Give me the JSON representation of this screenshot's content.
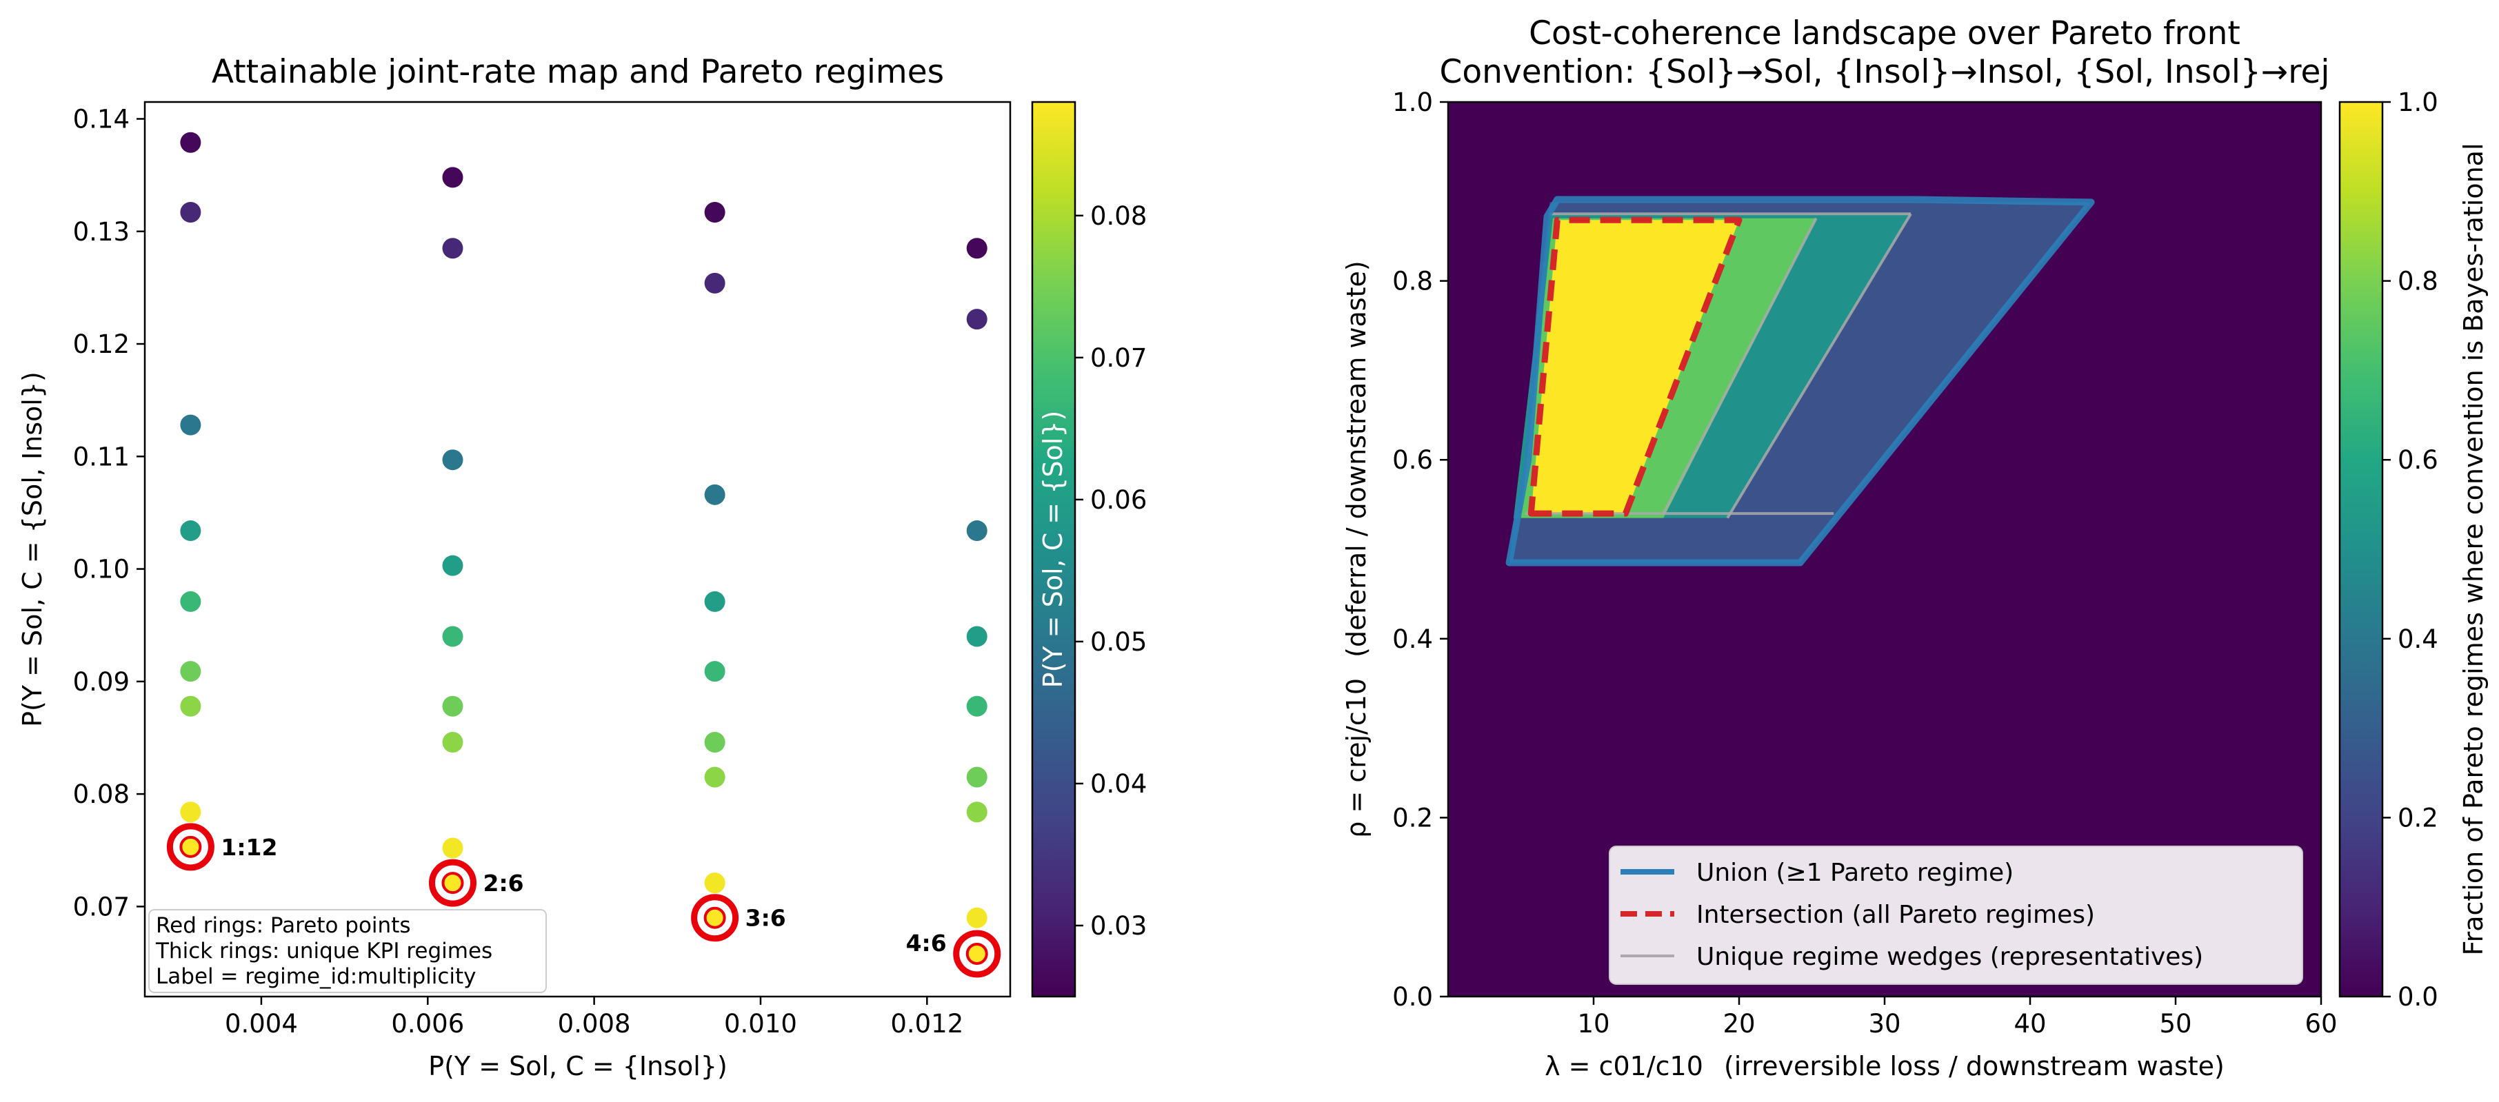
{
  "chart_data": [
    {
      "type": "scatter",
      "title": "Attainable joint-rate map and Pareto regimes",
      "xlabel": "P(Y = Sol, C = {Insol})",
      "ylabel": "P(Y = Sol, C = {Sol, Insol})",
      "xlim": [
        0.0026,
        0.013
      ],
      "ylim": [
        0.062,
        0.1415
      ],
      "xticks": [
        "0.004",
        "0.006",
        "0.008",
        "0.010",
        "0.012"
      ],
      "xtick_values": [
        0.004,
        0.006,
        0.008,
        0.01,
        0.012
      ],
      "yticks": [
        "0.07",
        "0.08",
        "0.09",
        "0.10",
        "0.11",
        "0.12",
        "0.13",
        "0.14"
      ],
      "ytick_values": [
        0.07,
        0.08,
        0.09,
        0.1,
        0.11,
        0.12,
        0.13,
        0.14
      ],
      "colorbar_label": "P(Y = Sol, C = {Sol})",
      "colorbar_range": [
        0.025,
        0.088
      ],
      "colorbar_ticks": [
        "0.03",
        "0.04",
        "0.05",
        "0.06",
        "0.07",
        "0.08"
      ],
      "colorbar_tick_values": [
        0.03,
        0.04,
        0.05,
        0.06,
        0.07,
        0.08
      ],
      "points": [
        {
          "x": 0.00315,
          "y": 0.1379,
          "c": 0.026
        },
        {
          "x": 0.00315,
          "y": 0.1317,
          "c": 0.032
        },
        {
          "x": 0.00315,
          "y": 0.1128,
          "c": 0.05
        },
        {
          "x": 0.00315,
          "y": 0.1034,
          "c": 0.06
        },
        {
          "x": 0.00315,
          "y": 0.0971,
          "c": 0.067
        },
        {
          "x": 0.00315,
          "y": 0.0909,
          "c": 0.074
        },
        {
          "x": 0.00315,
          "y": 0.0878,
          "c": 0.077
        },
        {
          "x": 0.00315,
          "y": 0.0784,
          "c": 0.087
        },
        {
          "x": 0.00315,
          "y": 0.0753,
          "c": 0.088
        },
        {
          "x": 0.0063,
          "y": 0.1348,
          "c": 0.026
        },
        {
          "x": 0.0063,
          "y": 0.1285,
          "c": 0.032
        },
        {
          "x": 0.0063,
          "y": 0.1097,
          "c": 0.05
        },
        {
          "x": 0.0063,
          "y": 0.1003,
          "c": 0.06
        },
        {
          "x": 0.0063,
          "y": 0.094,
          "c": 0.067
        },
        {
          "x": 0.0063,
          "y": 0.0878,
          "c": 0.074
        },
        {
          "x": 0.0063,
          "y": 0.0846,
          "c": 0.077
        },
        {
          "x": 0.0063,
          "y": 0.0752,
          "c": 0.087
        },
        {
          "x": 0.0063,
          "y": 0.0721,
          "c": 0.088
        },
        {
          "x": 0.00945,
          "y": 0.1317,
          "c": 0.026
        },
        {
          "x": 0.00945,
          "y": 0.1254,
          "c": 0.032
        },
        {
          "x": 0.00945,
          "y": 0.1066,
          "c": 0.05
        },
        {
          "x": 0.00945,
          "y": 0.0971,
          "c": 0.06
        },
        {
          "x": 0.00945,
          "y": 0.0909,
          "c": 0.067
        },
        {
          "x": 0.00945,
          "y": 0.0846,
          "c": 0.074
        },
        {
          "x": 0.00945,
          "y": 0.0815,
          "c": 0.077
        },
        {
          "x": 0.00945,
          "y": 0.0721,
          "c": 0.087
        },
        {
          "x": 0.00945,
          "y": 0.069,
          "c": 0.088
        },
        {
          "x": 0.0126,
          "y": 0.1285,
          "c": 0.026
        },
        {
          "x": 0.0126,
          "y": 0.1222,
          "c": 0.032
        },
        {
          "x": 0.0126,
          "y": 0.1034,
          "c": 0.05
        },
        {
          "x": 0.0126,
          "y": 0.094,
          "c": 0.06
        },
        {
          "x": 0.0126,
          "y": 0.0878,
          "c": 0.067
        },
        {
          "x": 0.0126,
          "y": 0.0815,
          "c": 0.074
        },
        {
          "x": 0.0126,
          "y": 0.0784,
          "c": 0.077
        },
        {
          "x": 0.0126,
          "y": 0.069,
          "c": 0.087
        },
        {
          "x": 0.0126,
          "y": 0.0658,
          "c": 0.088
        }
      ],
      "pareto_points": [
        {
          "x": 0.00315,
          "y": 0.0753,
          "label": "1:12",
          "label_side": "right"
        },
        {
          "x": 0.0063,
          "y": 0.0721,
          "label": "2:6",
          "label_side": "right"
        },
        {
          "x": 0.00945,
          "y": 0.069,
          "label": "3:6",
          "label_side": "right"
        },
        {
          "x": 0.0126,
          "y": 0.0658,
          "label": "4:6",
          "label_side": "left"
        }
      ],
      "notes": [
        "Red rings: Pareto points",
        "Thick rings: unique KPI regimes",
        "Label = regime_id:multiplicity"
      ]
    },
    {
      "type": "heatmap",
      "title_line1": "Cost-coherence landscape over Pareto front",
      "title_line2": "Convention: {Sol}→Sol,  {Insol}→Insol,  {Sol, Insol}→rej",
      "xlabel_main": "λ = c01/c10",
      "xlabel_desc": "(irreversible loss / downstream waste)",
      "ylabel_main": "ρ = crej/c10",
      "ylabel_desc": "(deferral / downstream waste)",
      "xlim": [
        0,
        60
      ],
      "ylim": [
        0,
        1
      ],
      "xticks": [
        "10",
        "20",
        "30",
        "40",
        "50",
        "60"
      ],
      "xtick_values": [
        10,
        20,
        30,
        40,
        50,
        60
      ],
      "yticks": [
        "0.0",
        "0.2",
        "0.4",
        "0.6",
        "0.8",
        "1.0"
      ],
      "ytick_values": [
        0,
        0.2,
        0.4,
        0.6,
        0.8,
        1.0
      ],
      "colorbar_label": "Fraction of Pareto regimes where convention is Bayes-rational",
      "colorbar_range": [
        0,
        1
      ],
      "colorbar_ticks": [
        "0.0",
        "0.2",
        "0.4",
        "0.6",
        "0.8",
        "1.0"
      ],
      "colorbar_tick_values": [
        0,
        0.2,
        0.4,
        0.6,
        0.8,
        1.0
      ],
      "background_value": 0.0,
      "regions": [
        {
          "value": 0.25,
          "polygon": [
            [
              4.2,
              0.485
            ],
            [
              24.2,
              0.485
            ],
            [
              44.2,
              0.888
            ],
            [
              7.0,
              0.888
            ]
          ]
        },
        {
          "value": 0.5,
          "polygon": [
            [
              4.5,
              0.535
            ],
            [
              19.2,
              0.535
            ],
            [
              31.8,
              0.875
            ],
            [
              7.0,
              0.875
            ]
          ]
        },
        {
          "value": 0.75,
          "polygon": [
            [
              5.0,
              0.535
            ],
            [
              14.8,
              0.535
            ],
            [
              25.3,
              0.87
            ],
            [
              7.2,
              0.87
            ]
          ]
        },
        {
          "value": 1.0,
          "polygon": [
            [
              5.7,
              0.54
            ],
            [
              12.2,
              0.54
            ],
            [
              20.0,
              0.868
            ],
            [
              7.5,
              0.868
            ]
          ]
        }
      ],
      "union_outline": [
        [
          4.2,
          0.485
        ],
        [
          24.2,
          0.485
        ],
        [
          44.2,
          0.888
        ],
        [
          32.0,
          0.891
        ],
        [
          7.5,
          0.891
        ],
        [
          6.8,
          0.872
        ],
        [
          5.5,
          0.6
        ]
      ],
      "intersection_outline": [
        [
          5.7,
          0.54
        ],
        [
          12.2,
          0.54
        ],
        [
          20.0,
          0.868
        ],
        [
          7.5,
          0.868
        ]
      ],
      "wedge_lines": [
        [
          [
            5.3,
            0.54
          ],
          [
            26.5,
            0.54
          ]
        ],
        [
          [
            25.3,
            0.87
          ],
          [
            14.8,
            0.54
          ]
        ],
        [
          [
            31.8,
            0.875
          ],
          [
            19.2,
            0.535
          ]
        ],
        [
          [
            7.0,
            0.875
          ],
          [
            31.8,
            0.875
          ]
        ]
      ],
      "legend": [
        {
          "label": "Union (≥1 Pareto regime)",
          "style": "solid-blue"
        },
        {
          "label": "Intersection (all Pareto regimes)",
          "style": "dashed-red"
        },
        {
          "label": "Unique regime wedges (representatives)",
          "style": "thin-gray"
        }
      ],
      "legend_position": "lower-right",
      "colors": {
        "union": "#2c7fb8",
        "intersection": "#d62728",
        "wedge": "#aaaaaa"
      }
    }
  ]
}
